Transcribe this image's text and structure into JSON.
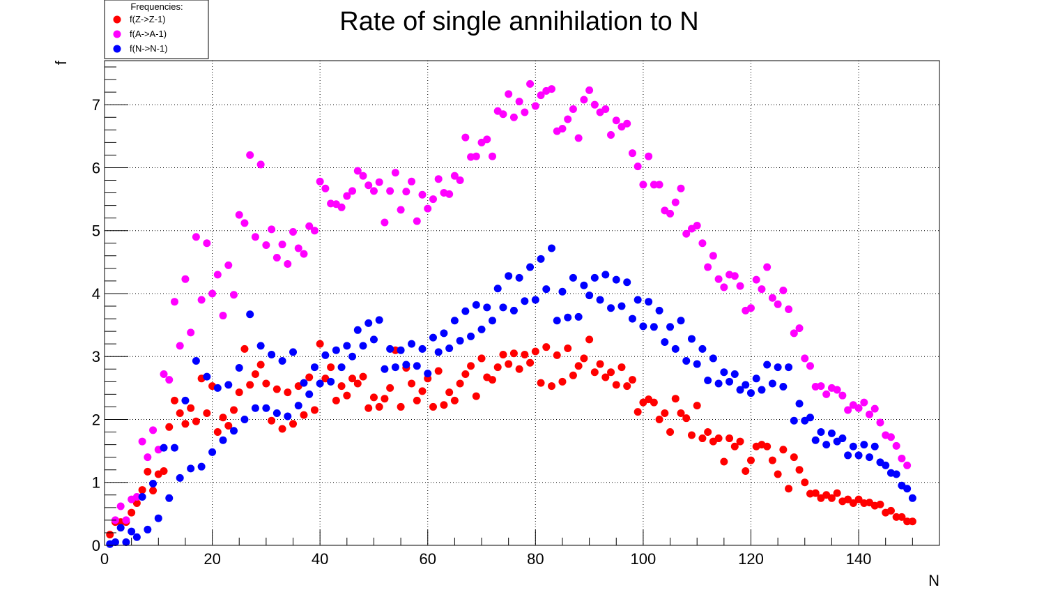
{
  "chart_data": {
    "type": "scatter",
    "title": "Rate of single annihilation to N",
    "xlabel": "N",
    "ylabel": "f",
    "xlim": [
      0,
      155
    ],
    "ylim": [
      0,
      7.7
    ],
    "x_ticks": [
      0,
      20,
      40,
      60,
      80,
      100,
      120,
      140
    ],
    "y_ticks": [
      0,
      1,
      2,
      3,
      4,
      5,
      6,
      7
    ],
    "grid": true,
    "legend": {
      "title": "Frequencies:",
      "placement": "top-left"
    },
    "series": [
      {
        "name": "f(Z->Z-1)",
        "color": "#ff0000",
        "x": [
          1,
          2,
          3,
          4,
          5,
          6,
          7,
          8,
          9,
          10,
          11,
          12,
          13,
          14,
          15,
          16,
          17,
          18,
          19,
          20,
          21,
          22,
          23,
          24,
          25,
          26,
          27,
          28,
          29,
          30,
          31,
          32,
          33,
          34,
          35,
          36,
          37,
          38,
          39,
          40,
          41,
          42,
          43,
          44,
          45,
          46,
          47,
          48,
          49,
          50,
          51,
          52,
          53,
          54,
          55,
          56,
          57,
          58,
          59,
          60,
          61,
          62,
          63,
          64,
          65,
          66,
          67,
          68,
          69,
          70,
          71,
          72,
          73,
          74,
          75,
          76,
          77,
          78,
          79,
          80,
          81,
          82,
          83,
          84,
          85,
          86,
          87,
          88,
          89,
          90,
          91,
          92,
          93,
          94,
          95,
          96,
          97,
          98,
          99,
          100,
          101,
          102,
          103,
          104,
          105,
          106,
          107,
          108,
          109,
          110,
          111,
          112,
          113,
          114,
          115,
          116,
          117,
          118,
          119,
          120,
          121,
          122,
          123,
          124,
          125,
          126,
          127,
          128,
          129,
          130,
          131,
          132,
          133,
          134,
          135,
          136,
          137,
          138,
          139,
          140,
          141,
          142,
          143,
          144,
          145,
          146,
          147,
          148,
          149,
          150
        ],
        "y": [
          0.17,
          0.37,
          0.37,
          0.37,
          0.52,
          0.67,
          0.88,
          1.17,
          0.87,
          1.13,
          1.18,
          1.88,
          2.3,
          2.1,
          1.93,
          2.18,
          1.97,
          2.65,
          2.1,
          2.53,
          1.8,
          2.03,
          1.9,
          2.15,
          2.43,
          3.12,
          2.55,
          2.72,
          2.87,
          2.57,
          1.98,
          2.48,
          1.85,
          2.43,
          1.93,
          2.53,
          2.07,
          2.67,
          2.15,
          3.2,
          2.65,
          2.83,
          2.3,
          2.53,
          2.38,
          2.65,
          2.57,
          2.68,
          2.18,
          2.35,
          2.2,
          2.33,
          2.5,
          3.1,
          2.2,
          2.82,
          2.57,
          2.3,
          2.45,
          2.65,
          2.2,
          2.77,
          2.23,
          2.43,
          2.3,
          2.57,
          2.72,
          2.85,
          2.37,
          2.97,
          2.67,
          2.63,
          2.83,
          3.03,
          2.88,
          3.05,
          2.8,
          3.03,
          2.9,
          3.08,
          2.58,
          3.15,
          2.53,
          3.02,
          2.6,
          3.13,
          2.7,
          2.85,
          2.97,
          3.27,
          2.75,
          2.88,
          2.67,
          2.75,
          2.55,
          2.83,
          2.53,
          2.63,
          2.12,
          2.27,
          2.32,
          2.27,
          2.0,
          2.1,
          1.8,
          2.33,
          2.1,
          2.02,
          1.75,
          2.22,
          1.7,
          1.8,
          1.65,
          1.7,
          1.33,
          1.7,
          1.57,
          1.65,
          1.18,
          1.35,
          1.57,
          1.6,
          1.57,
          1.35,
          1.13,
          1.52,
          0.9,
          1.4,
          1.2,
          1.0,
          0.82,
          0.83,
          0.75,
          0.8,
          0.75,
          0.83,
          0.7,
          0.73,
          0.67,
          0.73,
          0.67,
          0.68,
          0.63,
          0.65,
          0.52,
          0.55,
          0.45,
          0.45,
          0.38,
          0.38
        ]
      },
      {
        "name": "f(A->A-1)",
        "color": "#ff00ff",
        "x": [
          2,
          3,
          4,
          5,
          6,
          7,
          8,
          9,
          10,
          11,
          12,
          13,
          14,
          15,
          16,
          17,
          18,
          19,
          20,
          21,
          22,
          23,
          24,
          25,
          26,
          27,
          28,
          29,
          30,
          31,
          32,
          33,
          34,
          35,
          36,
          37,
          38,
          39,
          40,
          41,
          42,
          43,
          44,
          45,
          46,
          47,
          48,
          49,
          50,
          51,
          52,
          53,
          54,
          55,
          56,
          57,
          58,
          59,
          60,
          61,
          62,
          63,
          64,
          65,
          66,
          67,
          68,
          69,
          70,
          71,
          72,
          73,
          74,
          75,
          76,
          77,
          78,
          79,
          80,
          81,
          82,
          83,
          84,
          85,
          86,
          87,
          88,
          89,
          90,
          91,
          92,
          93,
          94,
          95,
          96,
          97,
          98,
          99,
          100,
          101,
          102,
          103,
          104,
          105,
          106,
          107,
          108,
          109,
          110,
          111,
          112,
          113,
          114,
          115,
          116,
          117,
          118,
          119,
          120,
          121,
          122,
          123,
          124,
          125,
          126,
          127,
          128,
          129,
          130,
          131,
          132,
          133,
          134,
          135,
          136,
          137,
          138,
          139,
          140,
          141,
          142,
          143,
          144,
          145,
          146,
          147,
          148,
          149
        ],
        "y": [
          0.4,
          0.62,
          0.4,
          0.73,
          0.77,
          1.65,
          1.4,
          1.83,
          1.52,
          2.72,
          2.63,
          3.87,
          3.17,
          4.23,
          3.38,
          4.9,
          3.9,
          4.8,
          4.0,
          4.3,
          3.65,
          4.45,
          3.98,
          5.25,
          5.12,
          6.2,
          4.9,
          6.05,
          4.77,
          5.02,
          4.57,
          4.78,
          4.47,
          4.98,
          4.72,
          4.63,
          5.07,
          5.0,
          5.78,
          5.67,
          5.43,
          5.42,
          5.37,
          5.55,
          5.63,
          5.95,
          5.87,
          5.72,
          5.63,
          5.77,
          5.13,
          5.63,
          5.92,
          5.33,
          5.62,
          5.78,
          5.15,
          5.57,
          5.35,
          5.5,
          5.82,
          5.6,
          5.58,
          5.87,
          5.8,
          6.48,
          6.17,
          6.18,
          6.4,
          6.45,
          6.18,
          6.9,
          6.85,
          7.17,
          6.8,
          7.05,
          6.88,
          7.33,
          6.98,
          7.15,
          7.22,
          7.25,
          6.58,
          6.62,
          6.77,
          6.93,
          6.47,
          7.08,
          7.23,
          7.0,
          6.88,
          6.93,
          6.52,
          6.75,
          6.65,
          6.7,
          6.23,
          6.02,
          5.73,
          6.18,
          5.73,
          5.73,
          5.32,
          5.27,
          5.45,
          5.67,
          4.95,
          5.03,
          5.08,
          4.8,
          4.42,
          4.6,
          4.23,
          4.1,
          4.3,
          4.28,
          4.12,
          3.73,
          3.77,
          4.22,
          4.07,
          4.42,
          3.93,
          3.83,
          4.05,
          3.75,
          3.37,
          3.45,
          2.97,
          2.85,
          2.52,
          2.53,
          2.4,
          2.5,
          2.47,
          2.38,
          2.15,
          2.23,
          2.18,
          2.27,
          2.08,
          2.17,
          1.95,
          1.75,
          1.72,
          1.58,
          1.38,
          1.27
        ]
      },
      {
        "name": "f(N->N-1)",
        "color": "#0000ff",
        "x": [
          1,
          2,
          3,
          4,
          5,
          6,
          7,
          8,
          9,
          10,
          11,
          12,
          13,
          14,
          15,
          16,
          17,
          18,
          19,
          20,
          21,
          22,
          23,
          24,
          25,
          26,
          27,
          28,
          29,
          30,
          31,
          32,
          33,
          34,
          35,
          36,
          37,
          38,
          39,
          40,
          41,
          42,
          43,
          44,
          45,
          46,
          47,
          48,
          49,
          50,
          51,
          52,
          53,
          54,
          55,
          56,
          57,
          58,
          59,
          60,
          61,
          62,
          63,
          64,
          65,
          66,
          67,
          68,
          69,
          70,
          71,
          72,
          73,
          74,
          75,
          76,
          77,
          78,
          79,
          80,
          81,
          82,
          83,
          84,
          85,
          86,
          87,
          88,
          89,
          90,
          91,
          92,
          93,
          94,
          95,
          96,
          97,
          98,
          99,
          100,
          101,
          102,
          103,
          104,
          105,
          106,
          107,
          108,
          109,
          110,
          111,
          112,
          113,
          114,
          115,
          116,
          117,
          118,
          119,
          120,
          121,
          122,
          123,
          124,
          125,
          126,
          127,
          128,
          129,
          130,
          131,
          132,
          133,
          134,
          135,
          136,
          137,
          138,
          139,
          140,
          141,
          142,
          143,
          144,
          145,
          146,
          147,
          148,
          149,
          150
        ],
        "y": [
          0.02,
          0.05,
          0.28,
          0.05,
          0.22,
          0.13,
          0.77,
          0.25,
          0.98,
          0.43,
          1.55,
          0.75,
          1.55,
          1.07,
          2.3,
          1.22,
          2.93,
          1.25,
          2.68,
          1.48,
          2.5,
          1.67,
          2.55,
          1.82,
          2.82,
          2.0,
          3.67,
          2.18,
          3.17,
          2.18,
          3.03,
          2.1,
          2.93,
          2.05,
          3.07,
          2.22,
          2.58,
          2.4,
          2.83,
          2.57,
          3.02,
          2.6,
          3.1,
          2.83,
          3.17,
          3.0,
          3.42,
          3.17,
          3.53,
          3.27,
          3.58,
          2.8,
          3.12,
          2.83,
          3.1,
          2.87,
          3.2,
          2.85,
          3.12,
          2.73,
          3.3,
          3.07,
          3.37,
          3.13,
          3.57,
          3.25,
          3.72,
          3.32,
          3.82,
          3.43,
          3.78,
          3.57,
          4.08,
          3.78,
          4.28,
          3.73,
          4.25,
          3.88,
          4.42,
          3.9,
          4.55,
          4.07,
          4.72,
          3.57,
          4.03,
          3.62,
          4.25,
          3.63,
          4.13,
          3.97,
          4.25,
          3.9,
          4.3,
          3.77,
          4.22,
          3.8,
          4.18,
          3.6,
          3.9,
          3.48,
          3.87,
          3.47,
          3.73,
          3.23,
          3.47,
          3.12,
          3.57,
          2.93,
          3.28,
          2.88,
          3.12,
          2.62,
          2.97,
          2.57,
          2.75,
          2.6,
          2.72,
          2.47,
          2.55,
          2.42,
          2.65,
          2.47,
          2.87,
          2.57,
          2.83,
          2.52,
          2.83,
          1.98,
          2.25,
          1.98,
          2.03,
          1.67,
          1.8,
          1.6,
          1.78,
          1.65,
          1.7,
          1.43,
          1.57,
          1.43,
          1.6,
          1.4,
          1.57,
          1.32,
          1.27,
          1.15,
          1.13,
          0.95,
          0.9,
          0.75
        ]
      }
    ]
  }
}
